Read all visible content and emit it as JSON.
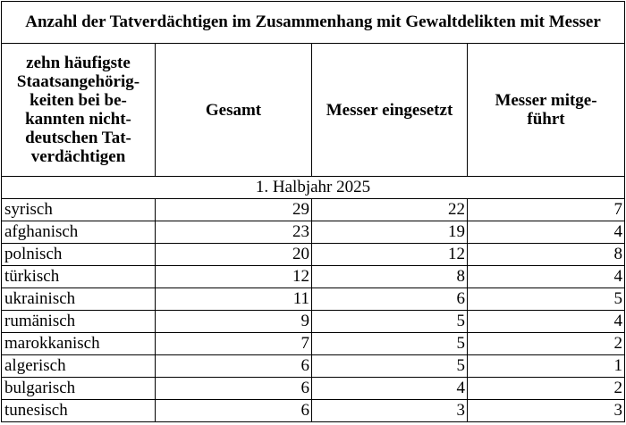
{
  "table": {
    "title": "Anzahl der Tatverdächtigen im Zusammenhang mit Gewaltdelikten mit Messer",
    "headers": [
      "zehn häufigste Staatsangehörig-keiten bei be-kannten nicht-deutschen Tat-verdächtigen",
      "Gesamt",
      "Messer eingesetzt",
      "Messer mitge-führt"
    ],
    "header_lines": {
      "col0": [
        "zehn häufigste",
        "Staatsangehörig-",
        "keiten bei be-",
        "kannten nicht-",
        "deutschen Tat-",
        "verdächtigen"
      ],
      "col1": [
        "Gesamt"
      ],
      "col2": [
        "Messer eingesetzt"
      ],
      "col3": [
        "Messer mitge-",
        "führt"
      ]
    },
    "period": "1. Halbjahr 2025",
    "rows": [
      {
        "nationality": "syrisch",
        "total": "29",
        "used": "22",
        "carried": "7"
      },
      {
        "nationality": "afghanisch",
        "total": "23",
        "used": "19",
        "carried": "4"
      },
      {
        "nationality": "polnisch",
        "total": "20",
        "used": "12",
        "carried": "8"
      },
      {
        "nationality": "türkisch",
        "total": "12",
        "used": "8",
        "carried": "4"
      },
      {
        "nationality": "ukrainisch",
        "total": "11",
        "used": "6",
        "carried": "5"
      },
      {
        "nationality": "rumänisch",
        "total": "9",
        "used": "5",
        "carried": "4"
      },
      {
        "nationality": "marokkanisch",
        "total": "7",
        "used": "5",
        "carried": "2"
      },
      {
        "nationality": "algerisch",
        "total": "6",
        "used": "5",
        "carried": "1"
      },
      {
        "nationality": "bulgarisch",
        "total": "6",
        "used": "4",
        "carried": "2"
      },
      {
        "nationality": "tunesisch",
        "total": "6",
        "used": "3",
        "carried": "3"
      }
    ]
  }
}
